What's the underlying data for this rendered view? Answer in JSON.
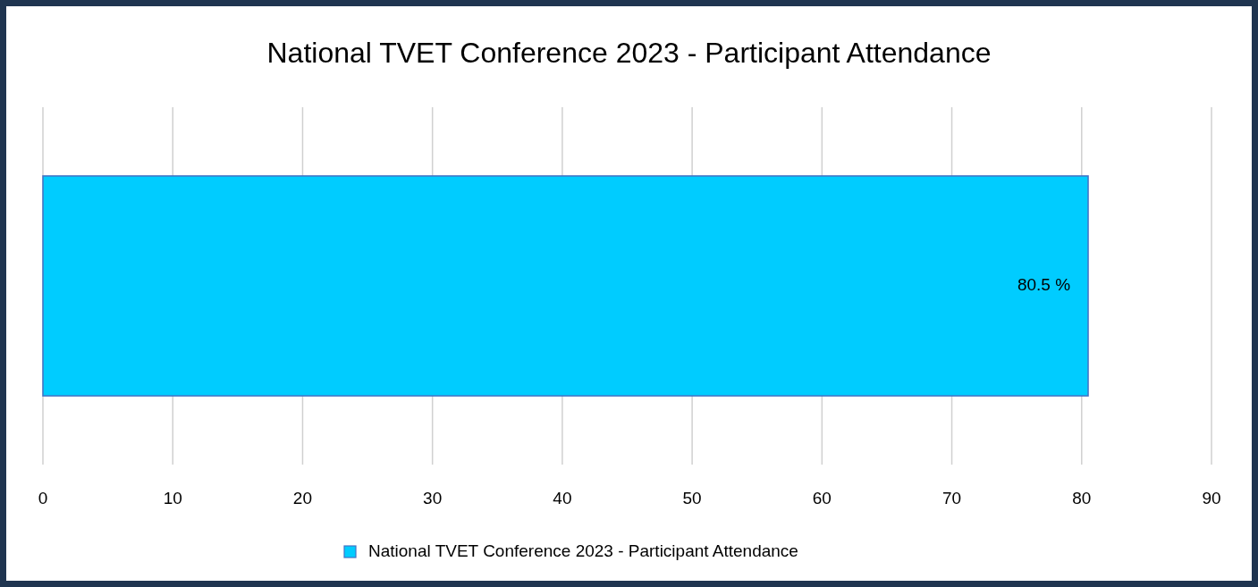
{
  "chart_data": {
    "type": "bar",
    "title": "National TVET Conference 2023 - Participant Attendance",
    "orientation": "horizontal",
    "categories": [
      null
    ],
    "series": [
      {
        "name": "National TVET Conference 2023 - Participant Attendance",
        "color": "#00ccff",
        "values": [
          80.5
        ],
        "value_labels": [
          "80.5 %"
        ]
      }
    ],
    "xlim": [
      0,
      90
    ],
    "xticks": [
      0,
      10,
      20,
      30,
      40,
      50,
      60,
      70,
      80,
      90
    ],
    "grid": "x",
    "legend": "bottom"
  }
}
